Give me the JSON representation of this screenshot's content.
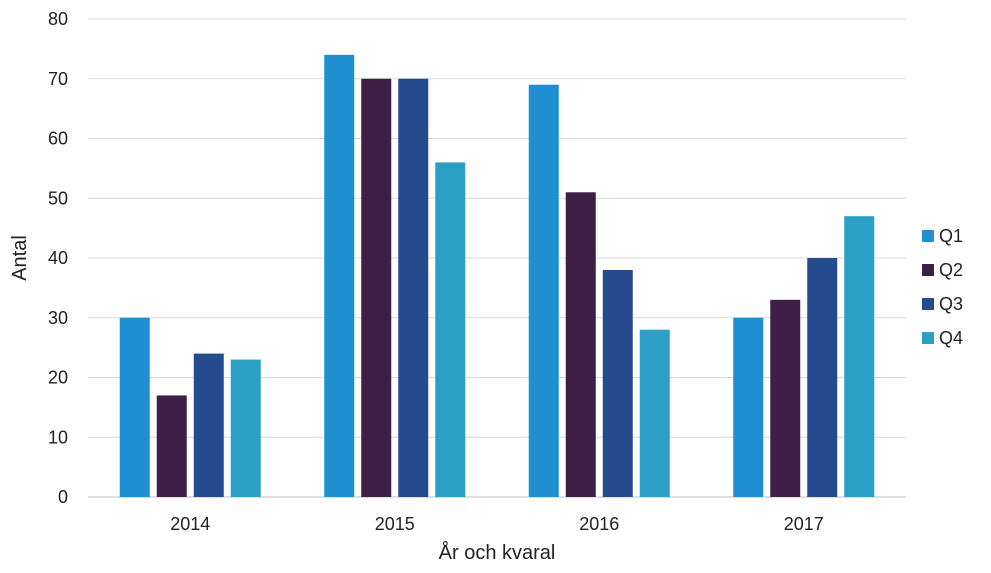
{
  "chart_data": {
    "type": "bar",
    "categories": [
      "2014",
      "2015",
      "2016",
      "2017"
    ],
    "series": [
      {
        "name": "Q1",
        "color": "#1f8fd1",
        "values": [
          30,
          74,
          69,
          30
        ]
      },
      {
        "name": "Q2",
        "color": "#3d1f45",
        "values": [
          17,
          70,
          51,
          33
        ]
      },
      {
        "name": "Q3",
        "color": "#254a8e",
        "values": [
          24,
          70,
          38,
          40
        ]
      },
      {
        "name": "Q4",
        "color": "#2b9fc6",
        "values": [
          23,
          56,
          28,
          47
        ]
      }
    ],
    "title": "",
    "xlabel": "År och kvaral",
    "ylabel": "Antal",
    "ylim": [
      0,
      80
    ],
    "yticks": [
      0,
      10,
      20,
      30,
      40,
      50,
      60,
      70,
      80
    ],
    "grid": true,
    "legend_position": "right"
  }
}
